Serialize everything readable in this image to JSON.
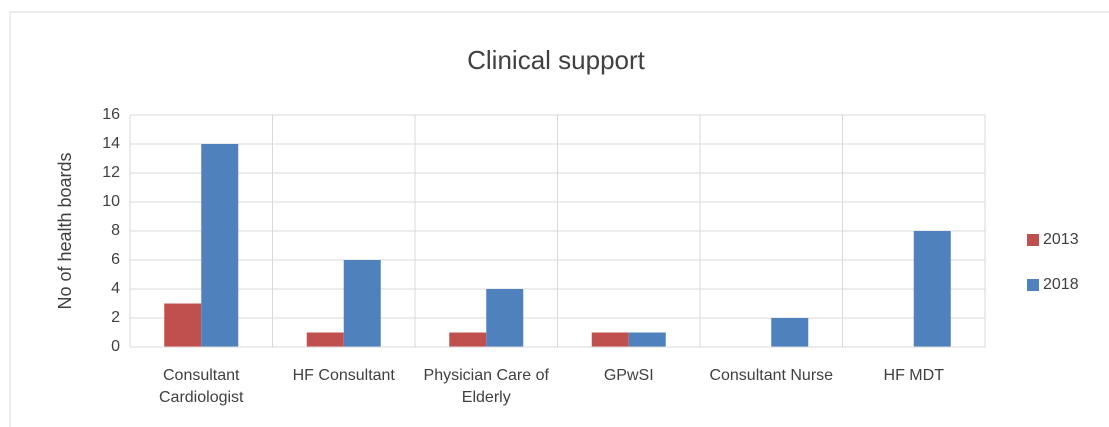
{
  "chart_data": {
    "type": "bar",
    "title": "Clinical support",
    "y_label": "No of health boards",
    "categories": [
      "Consultant Cardiologist",
      "HF Consultant",
      "Physician Care of Elderly",
      "GPwSI",
      "Consultant Nurse",
      "HF MDT"
    ],
    "series": [
      {
        "name": "2013",
        "color": "#c0504d",
        "values": [
          3,
          1,
          1,
          1,
          0,
          0
        ]
      },
      {
        "name": "2018",
        "color": "#4f81bd",
        "values": [
          14,
          6,
          4,
          1,
          2,
          8
        ]
      }
    ],
    "ylim": [
      0,
      16
    ],
    "yticks": [
      0,
      2,
      4,
      6,
      8,
      10,
      12,
      14,
      16
    ],
    "grid": true,
    "legend": "right"
  }
}
